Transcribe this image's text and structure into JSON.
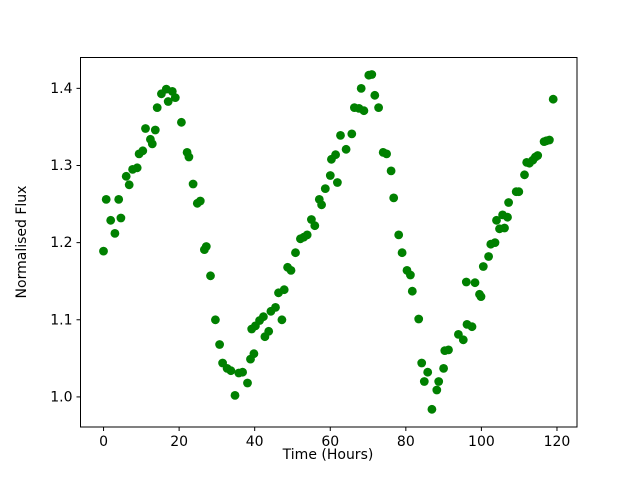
{
  "figure": {
    "background": "#ffffff"
  },
  "chart_data": {
    "type": "scatter",
    "title": "",
    "xlabel": "Time (Hours)",
    "ylabel": "Normalised Flux",
    "marker_color": "#008000",
    "marker_radius_px": 4.4,
    "axis_color": "#000000",
    "grid": false,
    "legend": null,
    "xlim": [
      -6.1,
      125.3
    ],
    "ylim": [
      0.961,
      1.44
    ],
    "xticks": [
      0,
      20,
      40,
      60,
      80,
      100,
      120
    ],
    "yticks": [
      1.0,
      1.1,
      1.2,
      1.3,
      1.4
    ],
    "points": [
      [
        0.0,
        1.189
      ],
      [
        0.7,
        1.256
      ],
      [
        1.9,
        1.229
      ],
      [
        3.0,
        1.212
      ],
      [
        4.0,
        1.256
      ],
      [
        4.6,
        1.232
      ],
      [
        6.0,
        1.286
      ],
      [
        6.8,
        1.275
      ],
      [
        7.7,
        1.295
      ],
      [
        8.9,
        1.297
      ],
      [
        9.4,
        1.315
      ],
      [
        10.4,
        1.319
      ],
      [
        11.1,
        1.348
      ],
      [
        12.4,
        1.334
      ],
      [
        12.9,
        1.328
      ],
      [
        13.7,
        1.346
      ],
      [
        14.2,
        1.375
      ],
      [
        15.3,
        1.393
      ],
      [
        16.6,
        1.399
      ],
      [
        17.1,
        1.383
      ],
      [
        18.2,
        1.396
      ],
      [
        19.0,
        1.388
      ],
      [
        20.6,
        1.356
      ],
      [
        22.1,
        1.317
      ],
      [
        22.6,
        1.311
      ],
      [
        23.7,
        1.276
      ],
      [
        24.8,
        1.251
      ],
      [
        25.6,
        1.254
      ],
      [
        26.7,
        1.191
      ],
      [
        27.2,
        1.195
      ],
      [
        28.3,
        1.157
      ],
      [
        29.6,
        1.1
      ],
      [
        30.7,
        1.068
      ],
      [
        31.5,
        1.044
      ],
      [
        32.7,
        1.037
      ],
      [
        33.7,
        1.034
      ],
      [
        34.8,
        1.002
      ],
      [
        35.8,
        1.031
      ],
      [
        36.8,
        1.032
      ],
      [
        38.1,
        1.018
      ],
      [
        38.9,
        1.049
      ],
      [
        39.2,
        1.088
      ],
      [
        39.8,
        1.056
      ],
      [
        40.2,
        1.092
      ],
      [
        41.3,
        1.099
      ],
      [
        42.3,
        1.104
      ],
      [
        42.7,
        1.078
      ],
      [
        43.7,
        1.085
      ],
      [
        44.3,
        1.111
      ],
      [
        45.5,
        1.116
      ],
      [
        46.3,
        1.135
      ],
      [
        47.2,
        1.1
      ],
      [
        47.8,
        1.139
      ],
      [
        48.7,
        1.168
      ],
      [
        49.6,
        1.164
      ],
      [
        50.8,
        1.187
      ],
      [
        52.1,
        1.205
      ],
      [
        53.0,
        1.207
      ],
      [
        53.9,
        1.21
      ],
      [
        55.0,
        1.23
      ],
      [
        55.9,
        1.222
      ],
      [
        57.1,
        1.256
      ],
      [
        57.7,
        1.249
      ],
      [
        58.7,
        1.27
      ],
      [
        60.0,
        1.287
      ],
      [
        60.3,
        1.308
      ],
      [
        61.4,
        1.314
      ],
      [
        61.9,
        1.278
      ],
      [
        62.7,
        1.339
      ],
      [
        64.2,
        1.321
      ],
      [
        65.7,
        1.341
      ],
      [
        66.4,
        1.375
      ],
      [
        67.6,
        1.374
      ],
      [
        68.2,
        1.4
      ],
      [
        68.9,
        1.371
      ],
      [
        70.2,
        1.417
      ],
      [
        71.0,
        1.418
      ],
      [
        71.8,
        1.391
      ],
      [
        72.8,
        1.375
      ],
      [
        74.0,
        1.317
      ],
      [
        74.9,
        1.315
      ],
      [
        76.1,
        1.293
      ],
      [
        76.8,
        1.258
      ],
      [
        78.1,
        1.21
      ],
      [
        79.0,
        1.187
      ],
      [
        80.3,
        1.164
      ],
      [
        81.2,
        1.158
      ],
      [
        81.7,
        1.137
      ],
      [
        83.4,
        1.101
      ],
      [
        84.2,
        1.044
      ],
      [
        84.9,
        1.02
      ],
      [
        85.8,
        1.032
      ],
      [
        86.9,
        0.984
      ],
      [
        88.2,
        1.009
      ],
      [
        88.7,
        1.02
      ],
      [
        90.0,
        1.037
      ],
      [
        90.3,
        1.06
      ],
      [
        91.3,
        1.061
      ],
      [
        93.9,
        1.081
      ],
      [
        95.2,
        1.074
      ],
      [
        96.0,
        1.149
      ],
      [
        96.2,
        1.094
      ],
      [
        97.5,
        1.091
      ],
      [
        98.3,
        1.148
      ],
      [
        99.5,
        1.133
      ],
      [
        99.9,
        1.13
      ],
      [
        100.5,
        1.169
      ],
      [
        101.9,
        1.182
      ],
      [
        102.5,
        1.198
      ],
      [
        103.6,
        1.2
      ],
      [
        104.0,
        1.229
      ],
      [
        104.8,
        1.218
      ],
      [
        105.6,
        1.236
      ],
      [
        106.1,
        1.219
      ],
      [
        106.9,
        1.233
      ],
      [
        107.2,
        1.252
      ],
      [
        109.2,
        1.266
      ],
      [
        109.9,
        1.266
      ],
      [
        111.4,
        1.288
      ],
      [
        112.0,
        1.304
      ],
      [
        112.7,
        1.303
      ],
      [
        113.6,
        1.307
      ],
      [
        114.3,
        1.311
      ],
      [
        114.9,
        1.313
      ],
      [
        116.6,
        1.331
      ],
      [
        117.2,
        1.332
      ],
      [
        118.0,
        1.333
      ],
      [
        119.0,
        1.386
      ]
    ]
  }
}
